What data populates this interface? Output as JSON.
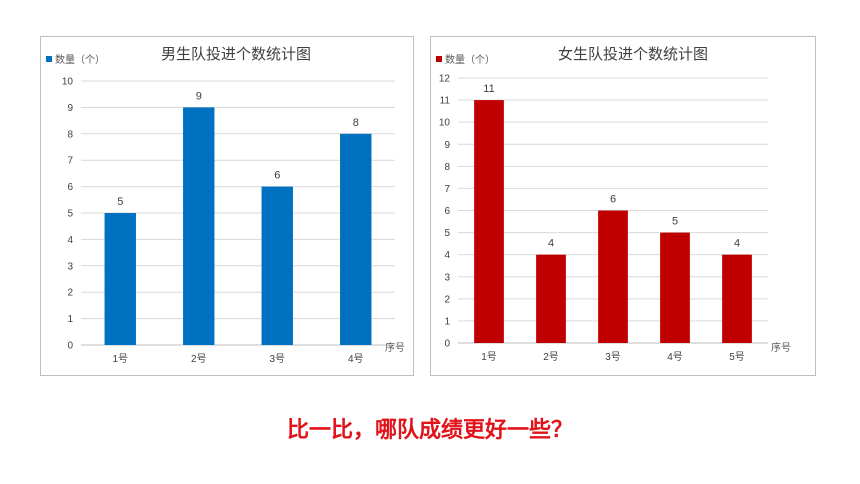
{
  "question": "比一比，哪队成绩更好一些？",
  "chart_data": [
    {
      "type": "bar",
      "title": "男生队投进个数统计图",
      "legend": "数量（个）",
      "legend_position": "top-left",
      "xlabel": "序号",
      "ylabel": "",
      "categories": [
        "1号",
        "2号",
        "3号",
        "4号"
      ],
      "series": [
        {
          "name": "数量（个）",
          "values": [
            5,
            9,
            6,
            8
          ]
        }
      ],
      "ylim": [
        0,
        10
      ],
      "yticks": [
        0,
        1,
        2,
        3,
        4,
        5,
        6,
        7,
        8,
        9,
        10
      ],
      "grid": true,
      "color": "#0070c0"
    },
    {
      "type": "bar",
      "title": "女生队投进个数统计图",
      "legend": "数量（个）",
      "legend_position": "top-left",
      "xlabel": "序号",
      "ylabel": "",
      "categories": [
        "1号",
        "2号",
        "3号",
        "4号",
        "5号"
      ],
      "series": [
        {
          "name": "数量（个）",
          "values": [
            11,
            4,
            6,
            5,
            4
          ]
        }
      ],
      "ylim": [
        0,
        12
      ],
      "yticks": [
        0,
        1,
        2,
        3,
        4,
        5,
        6,
        7,
        8,
        9,
        10,
        11,
        12
      ],
      "grid": true,
      "color": "#c00000"
    }
  ]
}
